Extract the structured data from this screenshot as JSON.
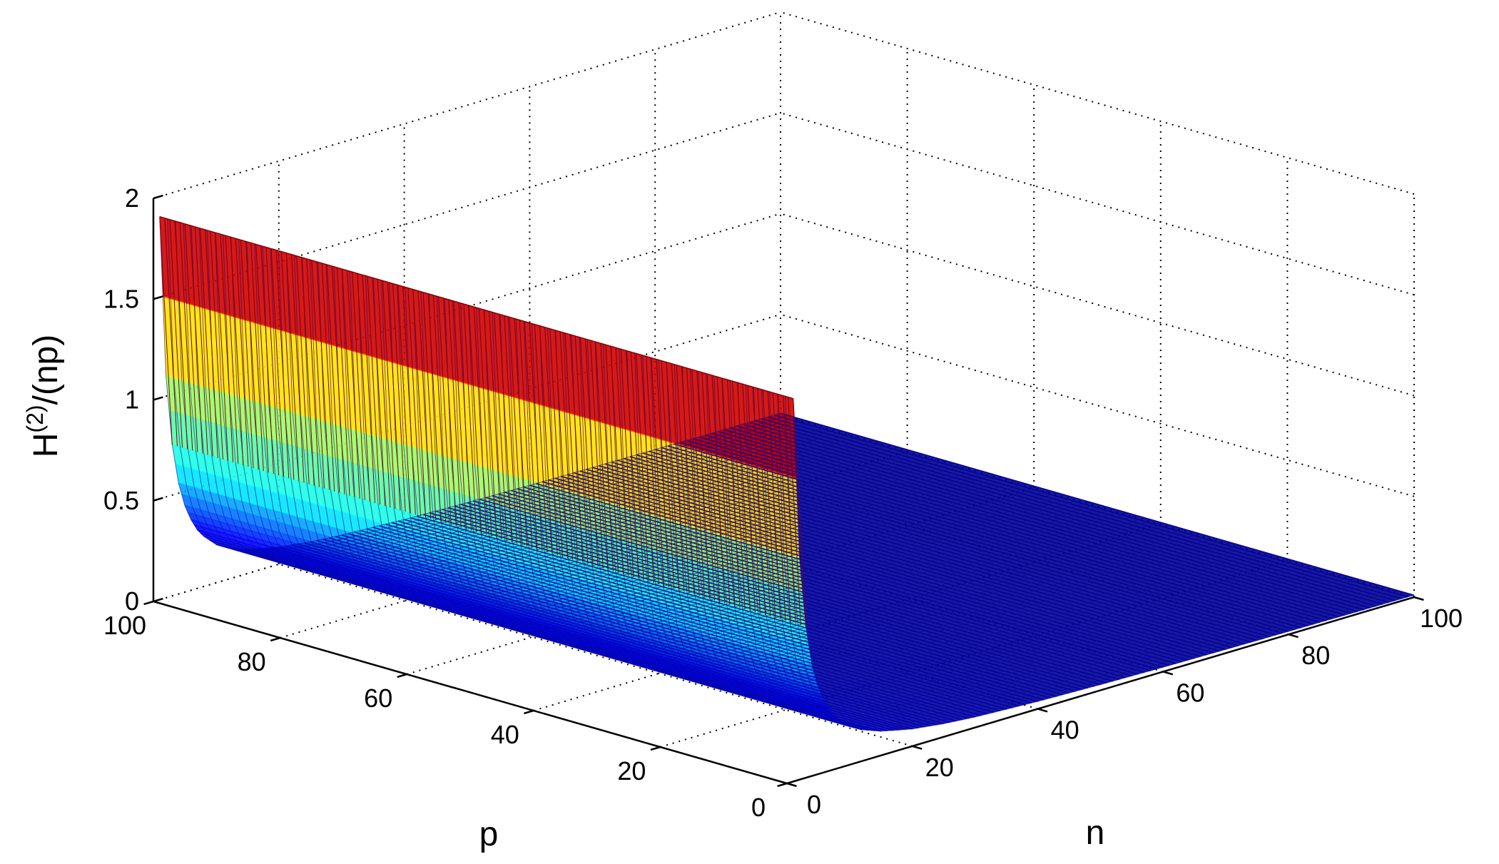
{
  "chart_data": {
    "type": "surface",
    "xlabel": "n",
    "ylabel": "p",
    "zlabel_main": "H",
    "zlabel_sup": "(2)",
    "zlabel_tail": "/(np)",
    "x_ticks": [
      "0",
      "20",
      "40",
      "60",
      "80",
      "100"
    ],
    "y_ticks": [
      "0",
      "20",
      "40",
      "60",
      "80",
      "100"
    ],
    "z_ticks": [
      "0",
      "0.5",
      "1",
      "1.5",
      "2"
    ],
    "xlim": [
      0,
      100
    ],
    "ylim": [
      0,
      100
    ],
    "zlim": [
      0,
      2
    ],
    "grid": true,
    "colormap": "jet",
    "colormap_colors": [
      "#00008f",
      "#0000ff",
      "#00ffff",
      "#7fff7f",
      "#ffff00",
      "#ff0000",
      "#7f0000"
    ],
    "surface_profile": {
      "n_values": [
        1,
        2,
        3,
        4,
        5,
        6,
        7,
        8,
        10,
        12,
        15,
        20,
        25,
        30,
        40,
        50,
        60,
        70,
        80,
        90,
        100
      ],
      "z_values": [
        1.9,
        1.1,
        0.75,
        0.55,
        0.43,
        0.35,
        0.29,
        0.25,
        0.19,
        0.155,
        0.12,
        0.085,
        0.065,
        0.052,
        0.037,
        0.028,
        0.022,
        0.018,
        0.015,
        0.012,
        0.01
      ],
      "p_dependence": "constant"
    }
  }
}
